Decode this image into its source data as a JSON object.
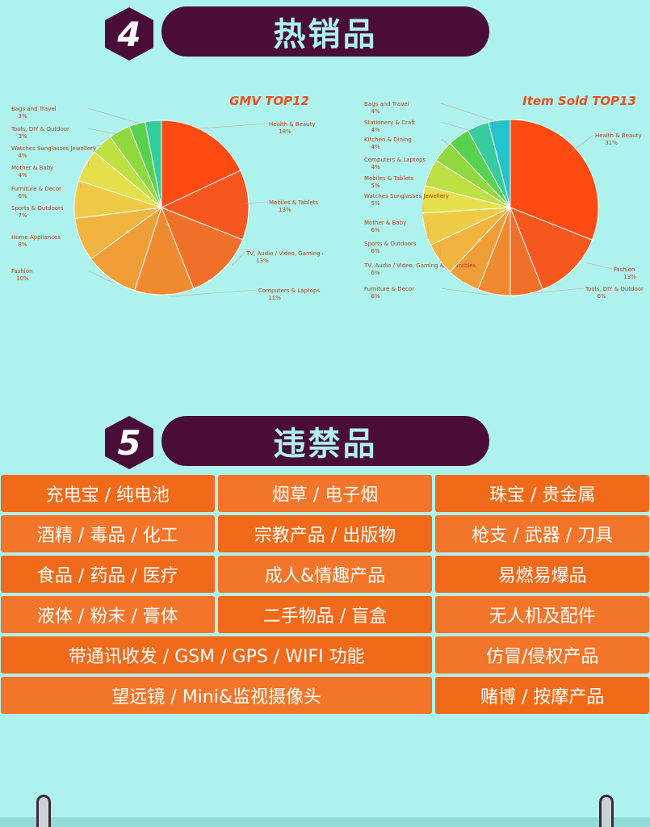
{
  "section4": {
    "number": "4",
    "title": "热销品"
  },
  "section5": {
    "number": "5",
    "title": "违禁品"
  },
  "chart_data": [
    {
      "type": "pie",
      "title": "GMV TOP12",
      "slices": [
        {
          "label": "Health & Beauty",
          "pct": "18%",
          "value": 18,
          "color": "#ff4a12"
        },
        {
          "label": "Mobiles & Tablets",
          "pct": "13%",
          "value": 13,
          "color": "#f5571f"
        },
        {
          "label": "TV, Audio / Video, Gaming & Wearables",
          "pct": "13%",
          "value": 13,
          "color": "#f0702a"
        },
        {
          "label": "Computers & Laptops",
          "pct": "11%",
          "value": 11,
          "color": "#ef8a31"
        },
        {
          "label": "Fashion",
          "pct": "10%",
          "value": 10,
          "color": "#ef9e37"
        },
        {
          "label": "Home Appliances",
          "pct": "8%",
          "value": 8,
          "color": "#f0b43f"
        },
        {
          "label": "Sports & Outdoors",
          "pct": "7%",
          "value": 7,
          "color": "#efcb45"
        },
        {
          "label": "Furniture & Decor",
          "pct": "6%",
          "value": 6,
          "color": "#e5e04a"
        },
        {
          "label": "Mother & Baby",
          "pct": "4%",
          "value": 4,
          "color": "#bde043"
        },
        {
          "label": "Watches Sunglasses Jewellery",
          "pct": "4%",
          "value": 4,
          "color": "#8fd83e"
        },
        {
          "label": "Tools, DIY & Outdoor",
          "pct": "3%",
          "value": 3,
          "color": "#56d24f"
        },
        {
          "label": "Bags and Travel",
          "pct": "3%",
          "value": 3,
          "color": "#35cc9e"
        }
      ]
    },
    {
      "type": "pie",
      "title": "Item Sold TOP13",
      "slices": [
        {
          "label": "Health & Beauty",
          "pct": "31%",
          "value": 31,
          "color": "#ff4a12"
        },
        {
          "label": "Fashion",
          "pct": "13%",
          "value": 13,
          "color": "#f5571f"
        },
        {
          "label": "Tools, DIY & Outdoor",
          "pct": "6%",
          "value": 6,
          "color": "#f0702a"
        },
        {
          "label": "Furniture & Decor",
          "pct": "6%",
          "value": 6,
          "color": "#ef8a31"
        },
        {
          "label": "TV, Audio / Video, Gaming & Wearables",
          "pct": "6%",
          "value": 6,
          "color": "#ef9e37"
        },
        {
          "label": "Sports & Outdoors",
          "pct": "6%",
          "value": 6,
          "color": "#f0b43f"
        },
        {
          "label": "Mother & Baby",
          "pct": "6%",
          "value": 6,
          "color": "#efcb45"
        },
        {
          "label": "Watches Sunglasses Jewellery",
          "pct": "5%",
          "value": 5,
          "color": "#e5e04a"
        },
        {
          "label": "Mobiles & Tablets",
          "pct": "5%",
          "value": 5,
          "color": "#bde043"
        },
        {
          "label": "Computers & Laptops",
          "pct": "4%",
          "value": 4,
          "color": "#8fd83e"
        },
        {
          "label": "Kitchen & Dining",
          "pct": "4%",
          "value": 4,
          "color": "#56d24f"
        },
        {
          "label": "Stationery & Craft",
          "pct": "4%",
          "value": 4,
          "color": "#35cc9e"
        },
        {
          "label": "Bags and Travel",
          "pct": "4%",
          "value": 4,
          "color": "#26c3cc"
        }
      ]
    }
  ],
  "prohibited": [
    [
      "充电宝 / 纯电池",
      "烟草 / 电子烟",
      "珠宝 / 贵金属"
    ],
    [
      "酒精 / 毒品 / 化工",
      "宗教产品 / 出版物",
      "枪支 / 武器 / 刀具"
    ],
    [
      "食品 / 药品 / 医疗",
      "成人&情趣产品",
      "易燃易爆品"
    ],
    [
      "液体 / 粉末 / 膏体",
      "二手物品 / 盲盒",
      "无人机及配件"
    ],
    [
      "带通讯收发 / GSM / GPS / WIFI 功能",
      "仿冒/侵权产品"
    ],
    [
      "望远镜 / Mini&监视摄像头",
      "赌博 / 按摩产品"
    ]
  ]
}
